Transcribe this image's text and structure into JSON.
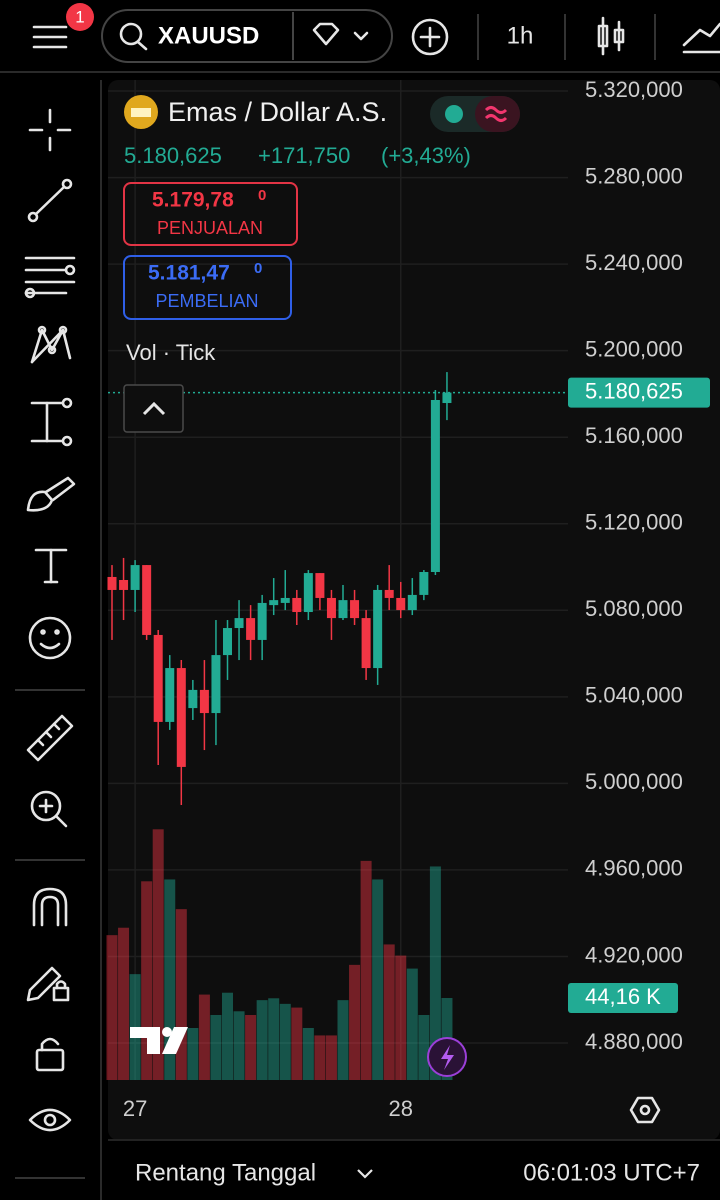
{
  "toolbar": {
    "notification_count": "1",
    "symbol": "XAUUSD",
    "interval": "1h"
  },
  "legend": {
    "title": "Emas / Dollar A.S.",
    "price": "5.180,625",
    "change": "+171,750",
    "change_percent": "(+3,43%)",
    "sell_price": "5.179,78",
    "sell_price_fraction": "0",
    "sell_label": "PENJUALAN",
    "buy_price": "5.181,47",
    "buy_price_fraction": "0",
    "buy_label": "PEMBELIAN",
    "volume_indicator": "Vol · Tick"
  },
  "chart_data": {
    "type": "candlestick",
    "categories": [
      null,
      null,
      "27",
      null,
      null,
      null,
      null,
      null,
      null,
      null,
      null,
      null,
      null,
      null,
      null,
      null,
      null,
      null,
      null,
      null,
      null,
      null,
      null,
      null,
      null,
      "28",
      null,
      null,
      null,
      null
    ],
    "open": [
      5095.4,
      5094,
      5089.4,
      5100.9,
      5068.6,
      5028.4,
      5053.3,
      5034.8,
      5043.2,
      5032.5,
      5059.3,
      5071.8,
      5076.4,
      5066.3,
      5082.4,
      5083.4,
      5085.7,
      5079.2,
      5097.2,
      5085.7,
      5076.4,
      5084.7,
      5076.4,
      5053.3,
      5089.4,
      5085.7,
      5080.1,
      5087.1,
      5097.7,
      5175.8
    ],
    "high": [
      5100.9,
      5104.2,
      5103.2,
      5100.9,
      5070.9,
      5059.3,
      5057,
      5047.8,
      5057,
      5075.5,
      5075.5,
      5084.7,
      5082.4,
      5087.1,
      5094.9,
      5098.6,
      5089.4,
      5098.6,
      5097.2,
      5089.4,
      5091.7,
      5089.4,
      5080.1,
      5091.7,
      5100.9,
      5093.1,
      5094.9,
      5098.6,
      5181.8,
      5190.1
    ],
    "low": [
      5066.3,
      5075.5,
      5079.2,
      5066.3,
      5008.5,
      5024.7,
      4990,
      5029.3,
      5015.4,
      5017.7,
      5047.8,
      5057,
      5057,
      5057,
      5077.8,
      5080.1,
      5073.2,
      5075.5,
      5080.1,
      5066.3,
      5075.5,
      5073.2,
      5047.8,
      5045.5,
      5080.1,
      5076.4,
      5077.8,
      5084.7,
      5096.3,
      5167.9
    ],
    "close": [
      5089.4,
      5089.4,
      5100.9,
      5068.6,
      5028.4,
      5053.3,
      5007.6,
      5043.2,
      5032.5,
      5059.3,
      5071.8,
      5076.4,
      5066.3,
      5083.4,
      5084.7,
      5085.7,
      5079.2,
      5097.2,
      5085.7,
      5076.4,
      5084.7,
      5076.4,
      5053.3,
      5089.4,
      5085.7,
      5080.1,
      5087.1,
      5097.7,
      5177.2,
      5180.625
    ],
    "volume": [
      78,
      82,
      57,
      107,
      135,
      108,
      92,
      28,
      46,
      35,
      47,
      37,
      35,
      43,
      44,
      41,
      39,
      28,
      24,
      24,
      43,
      62,
      118,
      108,
      73,
      67,
      60,
      35,
      115,
      44.16
    ],
    "last_price_label": "5.180,625",
    "last_volume_label": "44,16 K",
    "up_color": "#22ab94",
    "down_color": "#f23645",
    "ylim": [
      4862.9,
      5325.1
    ],
    "yticks": [
      {
        "value": 5320,
        "label": "5.320,000"
      },
      {
        "value": 5280,
        "label": "5.280,000"
      },
      {
        "value": 5240,
        "label": "5.240,000"
      },
      {
        "value": 5200,
        "label": "5.200,000"
      },
      {
        "value": 5160,
        "label": "5.160,000"
      },
      {
        "value": 5120,
        "label": "5.120,000"
      },
      {
        "value": 5080,
        "label": "5.080,000"
      },
      {
        "value": 5040,
        "label": "5.040,000"
      },
      {
        "value": 5000,
        "label": "5.000,000"
      },
      {
        "value": 4960,
        "label": "4.960,000"
      },
      {
        "value": 4920,
        "label": "4.920,000"
      },
      {
        "value": 4880,
        "label": "4.880,000"
      }
    ],
    "grid": true
  },
  "footer": {
    "date_range": "Rentang Tanggal",
    "time": "06:01:03 UTC+7"
  }
}
